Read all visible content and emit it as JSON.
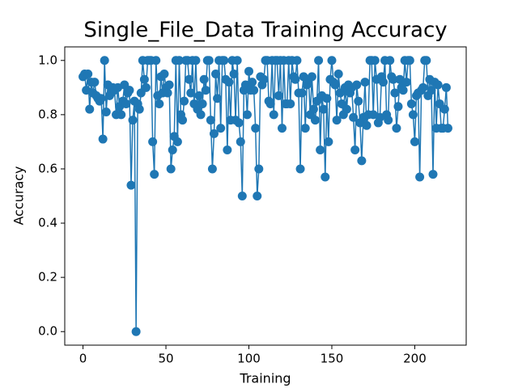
{
  "chart_data": {
    "type": "line",
    "title": "Single_File_Data Training Accuracy",
    "x_label": "Training",
    "y_label": "Accuracy",
    "x": [
      0,
      1,
      2,
      3,
      4,
      5,
      6,
      7,
      8,
      9,
      10,
      11,
      12,
      13,
      14,
      15,
      16,
      17,
      18,
      19,
      20,
      21,
      22,
      23,
      24,
      25,
      26,
      27,
      28,
      29,
      30,
      31,
      32,
      33,
      34,
      35,
      36,
      37,
      38,
      39,
      40,
      41,
      42,
      43,
      44,
      45,
      46,
      47,
      48,
      49,
      50,
      51,
      52,
      53,
      54,
      55,
      56,
      57,
      58,
      59,
      60,
      61,
      62,
      63,
      64,
      65,
      66,
      67,
      68,
      69,
      70,
      71,
      72,
      73,
      74,
      75,
      76,
      77,
      78,
      79,
      80,
      81,
      82,
      83,
      84,
      85,
      86,
      87,
      88,
      89,
      90,
      91,
      92,
      93,
      94,
      95,
      96,
      97,
      98,
      99,
      100,
      101,
      102,
      103,
      104,
      105,
      106,
      107,
      108,
      109,
      110,
      111,
      112,
      113,
      114,
      115,
      116,
      117,
      118,
      119,
      120,
      121,
      122,
      123,
      124,
      125,
      126,
      127,
      128,
      129,
      130,
      131,
      132,
      133,
      134,
      135,
      136,
      137,
      138,
      139,
      140,
      141,
      142,
      143,
      144,
      145,
      146,
      147,
      148,
      149,
      150,
      151,
      152,
      153,
      154,
      155,
      156,
      157,
      158,
      159,
      160,
      161,
      162,
      163,
      164,
      165,
      166,
      167,
      168,
      169,
      170,
      171,
      172,
      173,
      174,
      175,
      176,
      177,
      178,
      179,
      180,
      181,
      182,
      183,
      184,
      185,
      186,
      187,
      188,
      189,
      190,
      191,
      192,
      193,
      194,
      195,
      196,
      197,
      198,
      199,
      200,
      201,
      202,
      203,
      204,
      205,
      206,
      207,
      208,
      209,
      210,
      211,
      212,
      213,
      214,
      215,
      216,
      217,
      218,
      219,
      220
    ],
    "series": [
      {
        "name": "Accuracy",
        "color": "#1f77b4",
        "values": [
          0.94,
          0.95,
          0.89,
          0.95,
          0.82,
          0.92,
          0.88,
          0.92,
          0.87,
          0.86,
          0.85,
          0.86,
          0.71,
          1.0,
          0.81,
          0.91,
          0.87,
          0.88,
          0.9,
          0.89,
          0.8,
          0.9,
          0.83,
          0.8,
          0.85,
          0.91,
          0.84,
          0.88,
          0.89,
          0.54,
          0.78,
          0.85,
          0.0,
          0.84,
          0.82,
          0.88,
          1.0,
          0.93,
          0.9,
          1.0,
          1.0,
          1.0,
          0.7,
          0.58,
          1.0,
          0.87,
          0.84,
          0.94,
          0.88,
          0.95,
          0.9,
          0.88,
          0.91,
          0.6,
          0.67,
          0.72,
          1.0,
          0.7,
          1.0,
          0.8,
          0.78,
          0.85,
          1.0,
          1.0,
          0.93,
          0.88,
          1.0,
          0.84,
          1.0,
          0.82,
          0.87,
          0.8,
          0.84,
          0.93,
          0.89,
          1.0,
          1.0,
          0.78,
          0.6,
          0.73,
          0.95,
          0.86,
          1.0,
          0.75,
          1.0,
          1.0,
          0.93,
          0.67,
          0.92,
          0.78,
          1.0,
          0.95,
          0.78,
          1.0,
          0.77,
          0.7,
          0.5,
          0.89,
          0.91,
          0.8,
          0.96,
          0.89,
          0.92,
          0.89,
          0.75,
          0.5,
          0.6,
          0.94,
          0.91,
          0.93,
          1.0,
          1.0,
          0.85,
          0.84,
          1.0,
          0.8,
          1.0,
          1.0,
          0.87,
          1.0,
          0.75,
          1.0,
          0.84,
          0.84,
          1.0,
          0.84,
          1.0,
          0.94,
          0.93,
          1.0,
          0.88,
          0.6,
          0.88,
          0.94,
          0.75,
          0.91,
          0.93,
          0.8,
          0.94,
          0.82,
          0.78,
          0.85,
          1.0,
          0.67,
          0.87,
          0.82,
          0.57,
          0.86,
          0.7,
          0.93,
          1.0,
          0.92,
          0.91,
          0.78,
          0.95,
          0.88,
          0.84,
          0.8,
          0.9,
          0.82,
          0.91,
          0.88,
          0.9,
          0.79,
          0.67,
          0.91,
          0.85,
          0.77,
          0.63,
          0.79,
          0.92,
          0.76,
          0.8,
          1.0,
          1.0,
          0.8,
          1.0,
          0.93,
          0.77,
          0.79,
          0.94,
          0.92,
          1.0,
          0.8,
          0.78,
          1.0,
          0.94,
          0.93,
          0.88,
          0.75,
          0.83,
          0.93,
          0.9,
          0.89,
          1.0,
          0.92,
          1.0,
          1.0,
          0.84,
          0.8,
          0.7,
          0.87,
          0.88,
          0.57,
          0.89,
          0.9,
          1.0,
          1.0,
          0.87,
          0.93,
          0.89,
          0.58,
          0.92,
          0.75,
          0.91,
          0.84,
          0.75,
          0.75,
          0.82,
          0.9,
          0.75
        ]
      }
    ],
    "xlim": [
      -11,
      231
    ],
    "ylim": [
      -0.05,
      1.05
    ],
    "xticks": [
      0,
      50,
      100,
      150,
      200
    ],
    "yticks": [
      {
        "value": 0.0,
        "label": "0.0"
      },
      0.2,
      0.4,
      0.6,
      0.8,
      {
        "value": 1.0,
        "label": "1.0"
      }
    ],
    "grid": false
  }
}
